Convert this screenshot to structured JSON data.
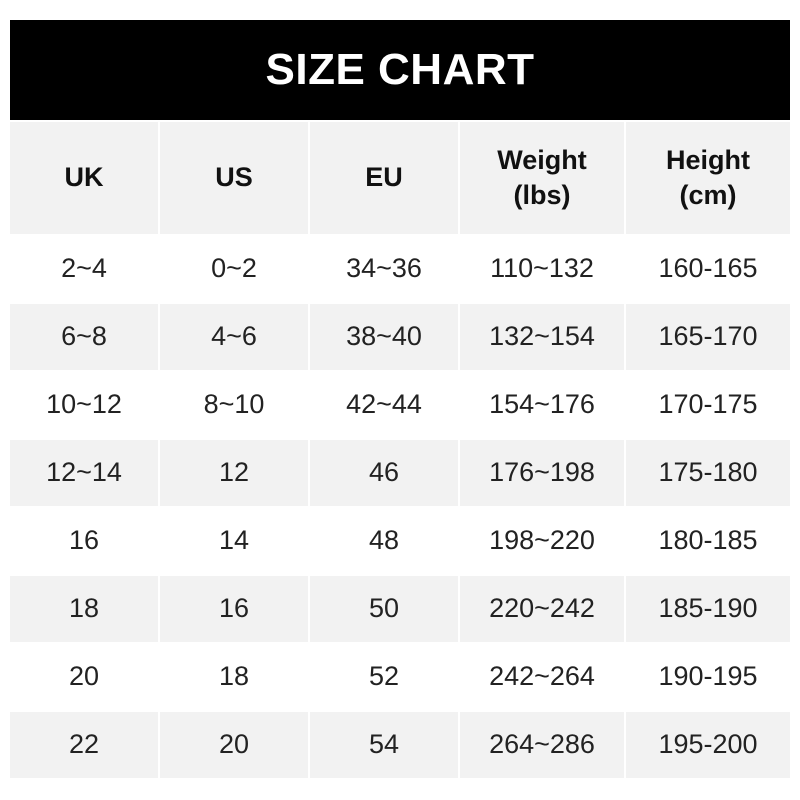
{
  "title": "SIZE CHART",
  "columns": [
    "UK",
    "US",
    "EU",
    "Weight\n(lbs)",
    "Height\n(cm)"
  ],
  "rows": [
    [
      "2~4",
      "0~2",
      "34~36",
      "110~132",
      "160-165"
    ],
    [
      "6~8",
      "4~6",
      "38~40",
      "132~154",
      "165-170"
    ],
    [
      "10~12",
      "8~10",
      "42~44",
      "154~176",
      "170-175"
    ],
    [
      "12~14",
      "12",
      "46",
      "176~198",
      "175-180"
    ],
    [
      "16",
      "14",
      "48",
      "198~220",
      "180-185"
    ],
    [
      "18",
      "16",
      "50",
      "220~242",
      "185-190"
    ],
    [
      "20",
      "18",
      "52",
      "242~264",
      "190-195"
    ],
    [
      "22",
      "20",
      "54",
      "264~286",
      "195-200"
    ]
  ],
  "colors": {
    "header_bg": "#000000",
    "title_text": "#ffffff",
    "shaded_row": "#f2f2f2"
  }
}
